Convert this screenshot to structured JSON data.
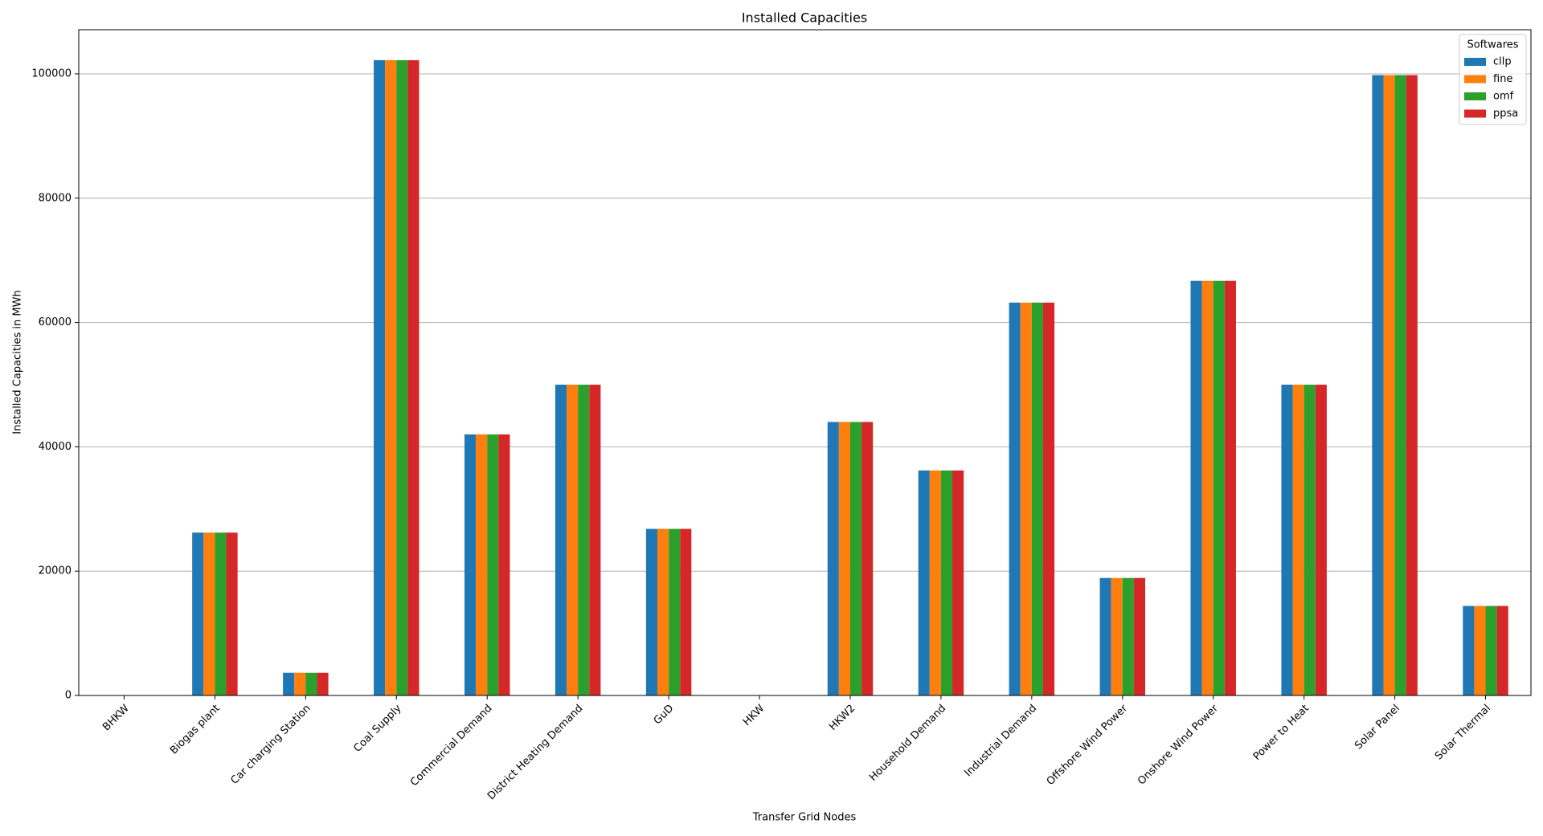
{
  "chart_data": {
    "type": "bar",
    "title": "Installed Capacities",
    "x_label": "Transfer Grid Nodes",
    "y_label": "Installed Capacities in MWh",
    "categories": [
      "BHKW",
      "Biogas plant",
      "Car charging Station",
      "Coal Supply",
      "Commercial Demand",
      "District Heating Demand",
      "GuD",
      "HKW",
      "HKW2",
      "Household Demand",
      "Industrial Demand",
      "Offshore Wind Power",
      "Onshore Wind Power",
      "Power to Heat",
      "Solar Panel",
      "Solar Thermal"
    ],
    "series": [
      {
        "name": "cllp",
        "color": "#1f77b4",
        "values": [
          0,
          26200,
          3650,
          102200,
          42000,
          50000,
          26800,
          0,
          44000,
          36200,
          63200,
          18900,
          66700,
          50000,
          99800,
          14400
        ]
      },
      {
        "name": "fine",
        "color": "#ff7f0e",
        "values": [
          0,
          26200,
          3650,
          102200,
          42000,
          50000,
          26800,
          0,
          44000,
          36200,
          63200,
          18900,
          66700,
          50000,
          99800,
          14400
        ]
      },
      {
        "name": "omf",
        "color": "#2ca02c",
        "values": [
          0,
          26200,
          3650,
          102200,
          42000,
          50000,
          26800,
          0,
          44000,
          36200,
          63200,
          18900,
          66700,
          50000,
          99800,
          14400
        ]
      },
      {
        "name": "ppsa",
        "color": "#d62728",
        "values": [
          0,
          26200,
          3650,
          102200,
          42000,
          50000,
          26800,
          0,
          44000,
          36200,
          63200,
          18900,
          66700,
          50000,
          99800,
          14400
        ]
      }
    ],
    "ylim": [
      0,
      107100
    ],
    "yticks": [
      0,
      20000,
      40000,
      60000,
      80000,
      100000
    ],
    "grid": true,
    "legend_title": "Softwares",
    "legend_position": "upper-right"
  }
}
